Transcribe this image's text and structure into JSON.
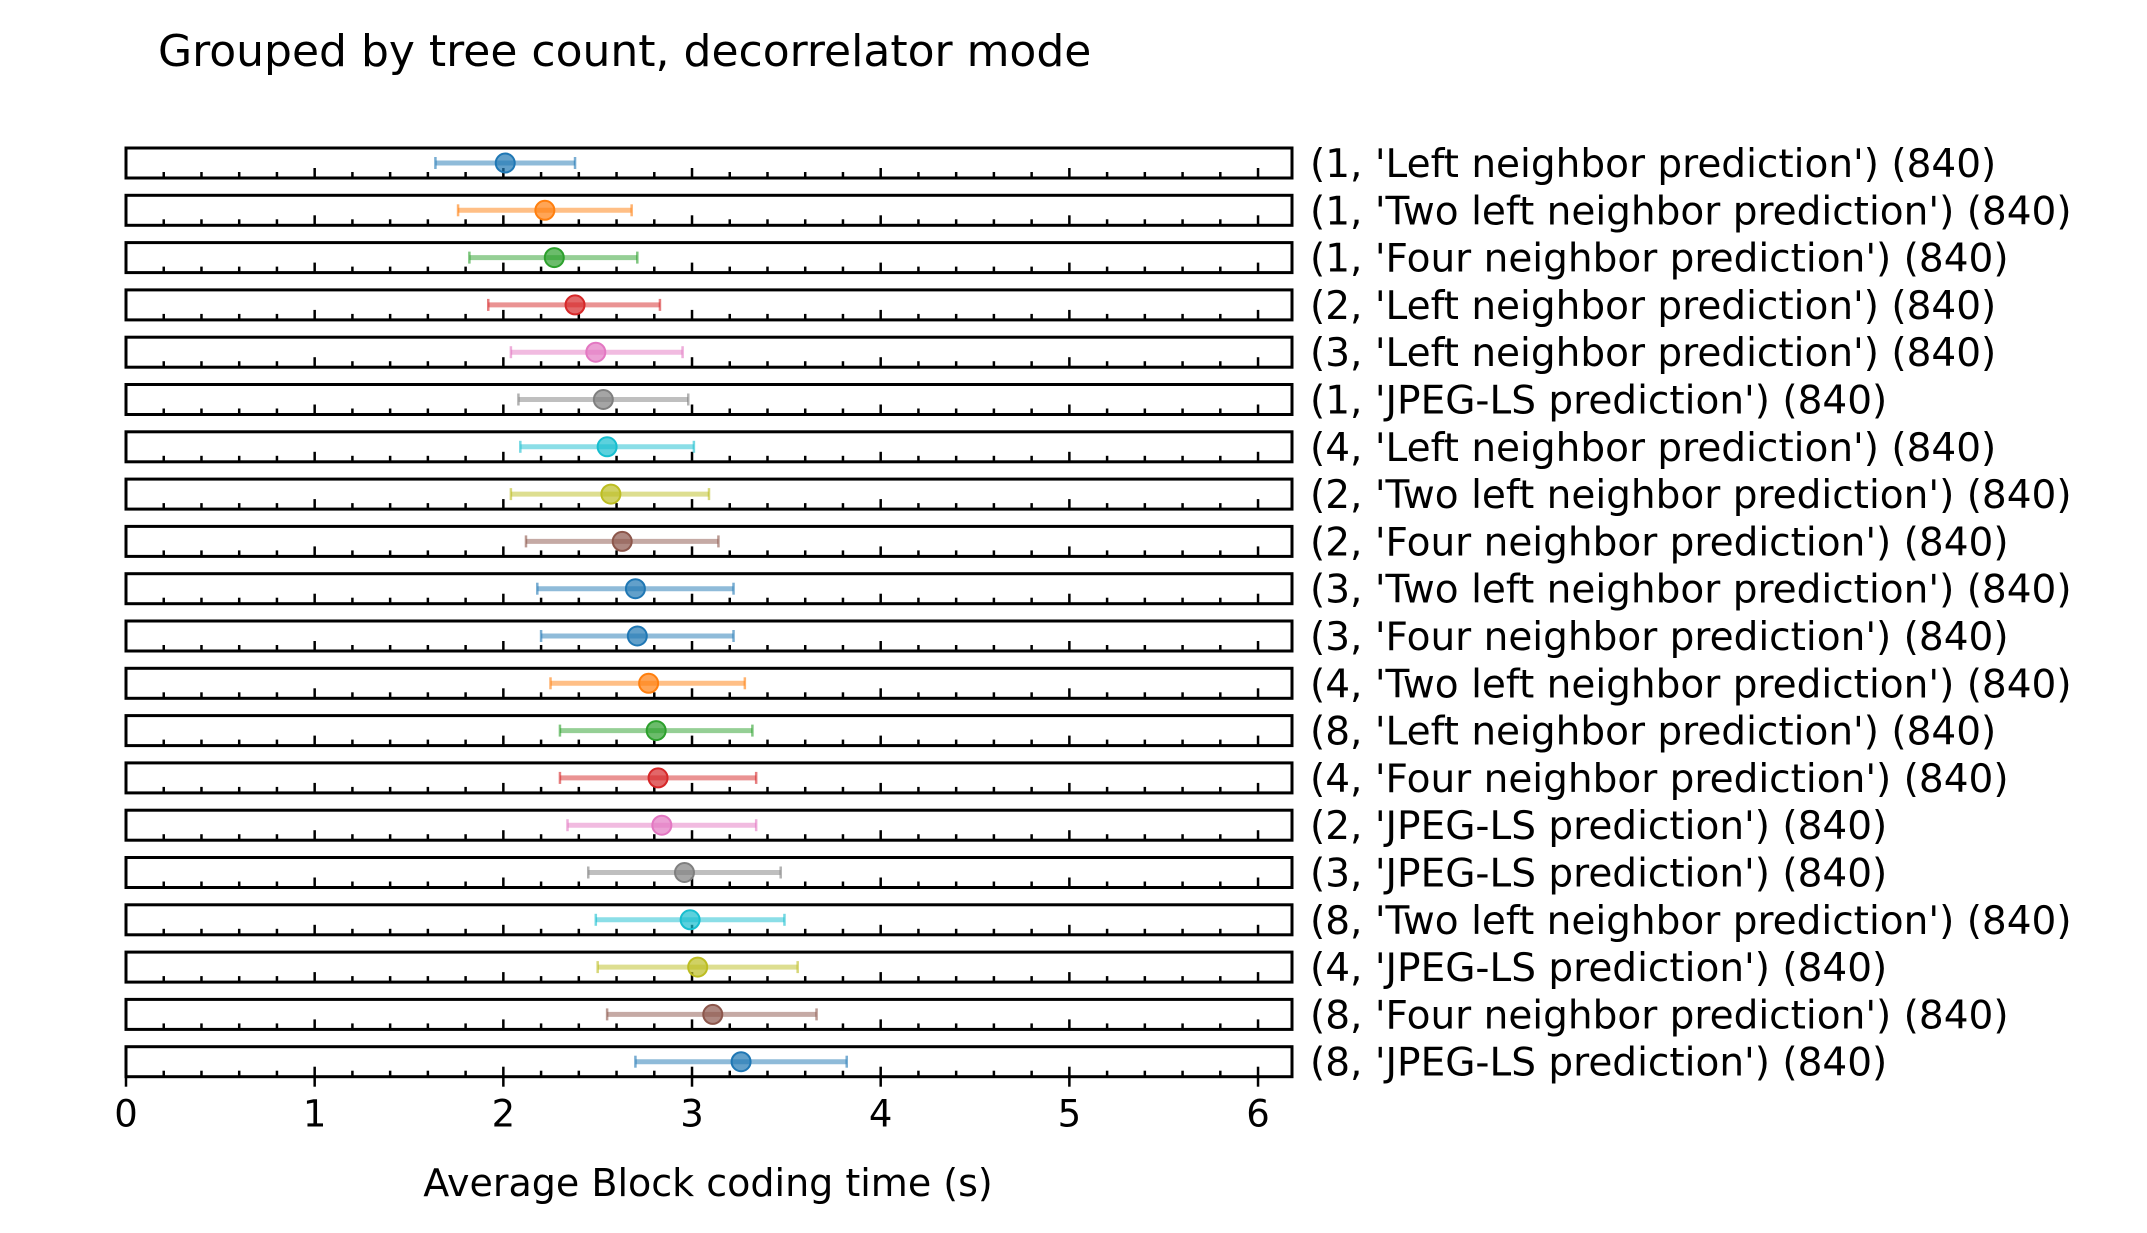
{
  "chart_data": {
    "type": "scatter",
    "title": "Grouped by tree count, decorrelator mode",
    "xlabel": "Average Block coding time (s)",
    "xlim": [
      0,
      6.18
    ],
    "xticks": [
      0,
      1,
      2,
      3,
      4,
      5,
      6
    ],
    "grid": false,
    "legend": "none",
    "palette": [
      "#1f77b4",
      "#ff7f0e",
      "#2ca02c",
      "#d62728",
      "#e377c2",
      "#7f7f7f",
      "#17becf",
      "#bcbd22",
      "#8c564b"
    ],
    "rows": [
      {
        "label": "(1, 'Left neighbor prediction') (840)",
        "mean": 2.01,
        "low": 1.64,
        "high": 2.38,
        "color": "#1f77b4"
      },
      {
        "label": "(1, 'Two left neighbor prediction') (840)",
        "mean": 2.22,
        "low": 1.76,
        "high": 2.68,
        "color": "#ff7f0e"
      },
      {
        "label": "(1, 'Four neighbor prediction') (840)",
        "mean": 2.27,
        "low": 1.82,
        "high": 2.71,
        "color": "#2ca02c"
      },
      {
        "label": "(2, 'Left neighbor prediction') (840)",
        "mean": 2.38,
        "low": 1.92,
        "high": 2.83,
        "color": "#d62728"
      },
      {
        "label": "(3, 'Left neighbor prediction') (840)",
        "mean": 2.49,
        "low": 2.04,
        "high": 2.95,
        "color": "#e377c2"
      },
      {
        "label": "(1, 'JPEG-LS prediction') (840)",
        "mean": 2.53,
        "low": 2.08,
        "high": 2.98,
        "color": "#7f7f7f"
      },
      {
        "label": "(4, 'Left neighbor prediction') (840)",
        "mean": 2.55,
        "low": 2.09,
        "high": 3.01,
        "color": "#17becf"
      },
      {
        "label": "(2, 'Two left neighbor prediction') (840)",
        "mean": 2.57,
        "low": 2.04,
        "high": 3.09,
        "color": "#bcbd22"
      },
      {
        "label": "(2, 'Four neighbor prediction') (840)",
        "mean": 2.63,
        "low": 2.12,
        "high": 3.14,
        "color": "#8c564b"
      },
      {
        "label": "(3, 'Two left neighbor prediction') (840)",
        "mean": 2.7,
        "low": 2.18,
        "high": 3.22,
        "color": "#1f77b4"
      },
      {
        "label": "(3, 'Four neighbor prediction') (840)",
        "mean": 2.71,
        "low": 2.2,
        "high": 3.22,
        "color": "#1f77b4"
      },
      {
        "label": "(4, 'Two left neighbor prediction') (840)",
        "mean": 2.77,
        "low": 2.25,
        "high": 3.28,
        "color": "#ff7f0e"
      },
      {
        "label": "(8, 'Left neighbor prediction') (840)",
        "mean": 2.81,
        "low": 2.3,
        "high": 3.32,
        "color": "#2ca02c"
      },
      {
        "label": "(4, 'Four neighbor prediction') (840)",
        "mean": 2.82,
        "low": 2.3,
        "high": 3.34,
        "color": "#d62728"
      },
      {
        "label": "(2, 'JPEG-LS prediction') (840)",
        "mean": 2.84,
        "low": 2.34,
        "high": 3.34,
        "color": "#e377c2"
      },
      {
        "label": "(3, 'JPEG-LS prediction') (840)",
        "mean": 2.96,
        "low": 2.45,
        "high": 3.47,
        "color": "#7f7f7f"
      },
      {
        "label": "(8, 'Two left neighbor prediction') (840)",
        "mean": 2.99,
        "low": 2.49,
        "high": 3.49,
        "color": "#17becf"
      },
      {
        "label": "(4, 'JPEG-LS prediction') (840)",
        "mean": 3.03,
        "low": 2.5,
        "high": 3.56,
        "color": "#bcbd22"
      },
      {
        "label": "(8, 'Four neighbor prediction') (840)",
        "mean": 3.11,
        "low": 2.55,
        "high": 3.66,
        "color": "#8c564b"
      },
      {
        "label": "(8, 'JPEG-LS prediction') (840)",
        "mean": 3.26,
        "low": 2.7,
        "high": 3.82,
        "color": "#1f77b4"
      }
    ]
  }
}
